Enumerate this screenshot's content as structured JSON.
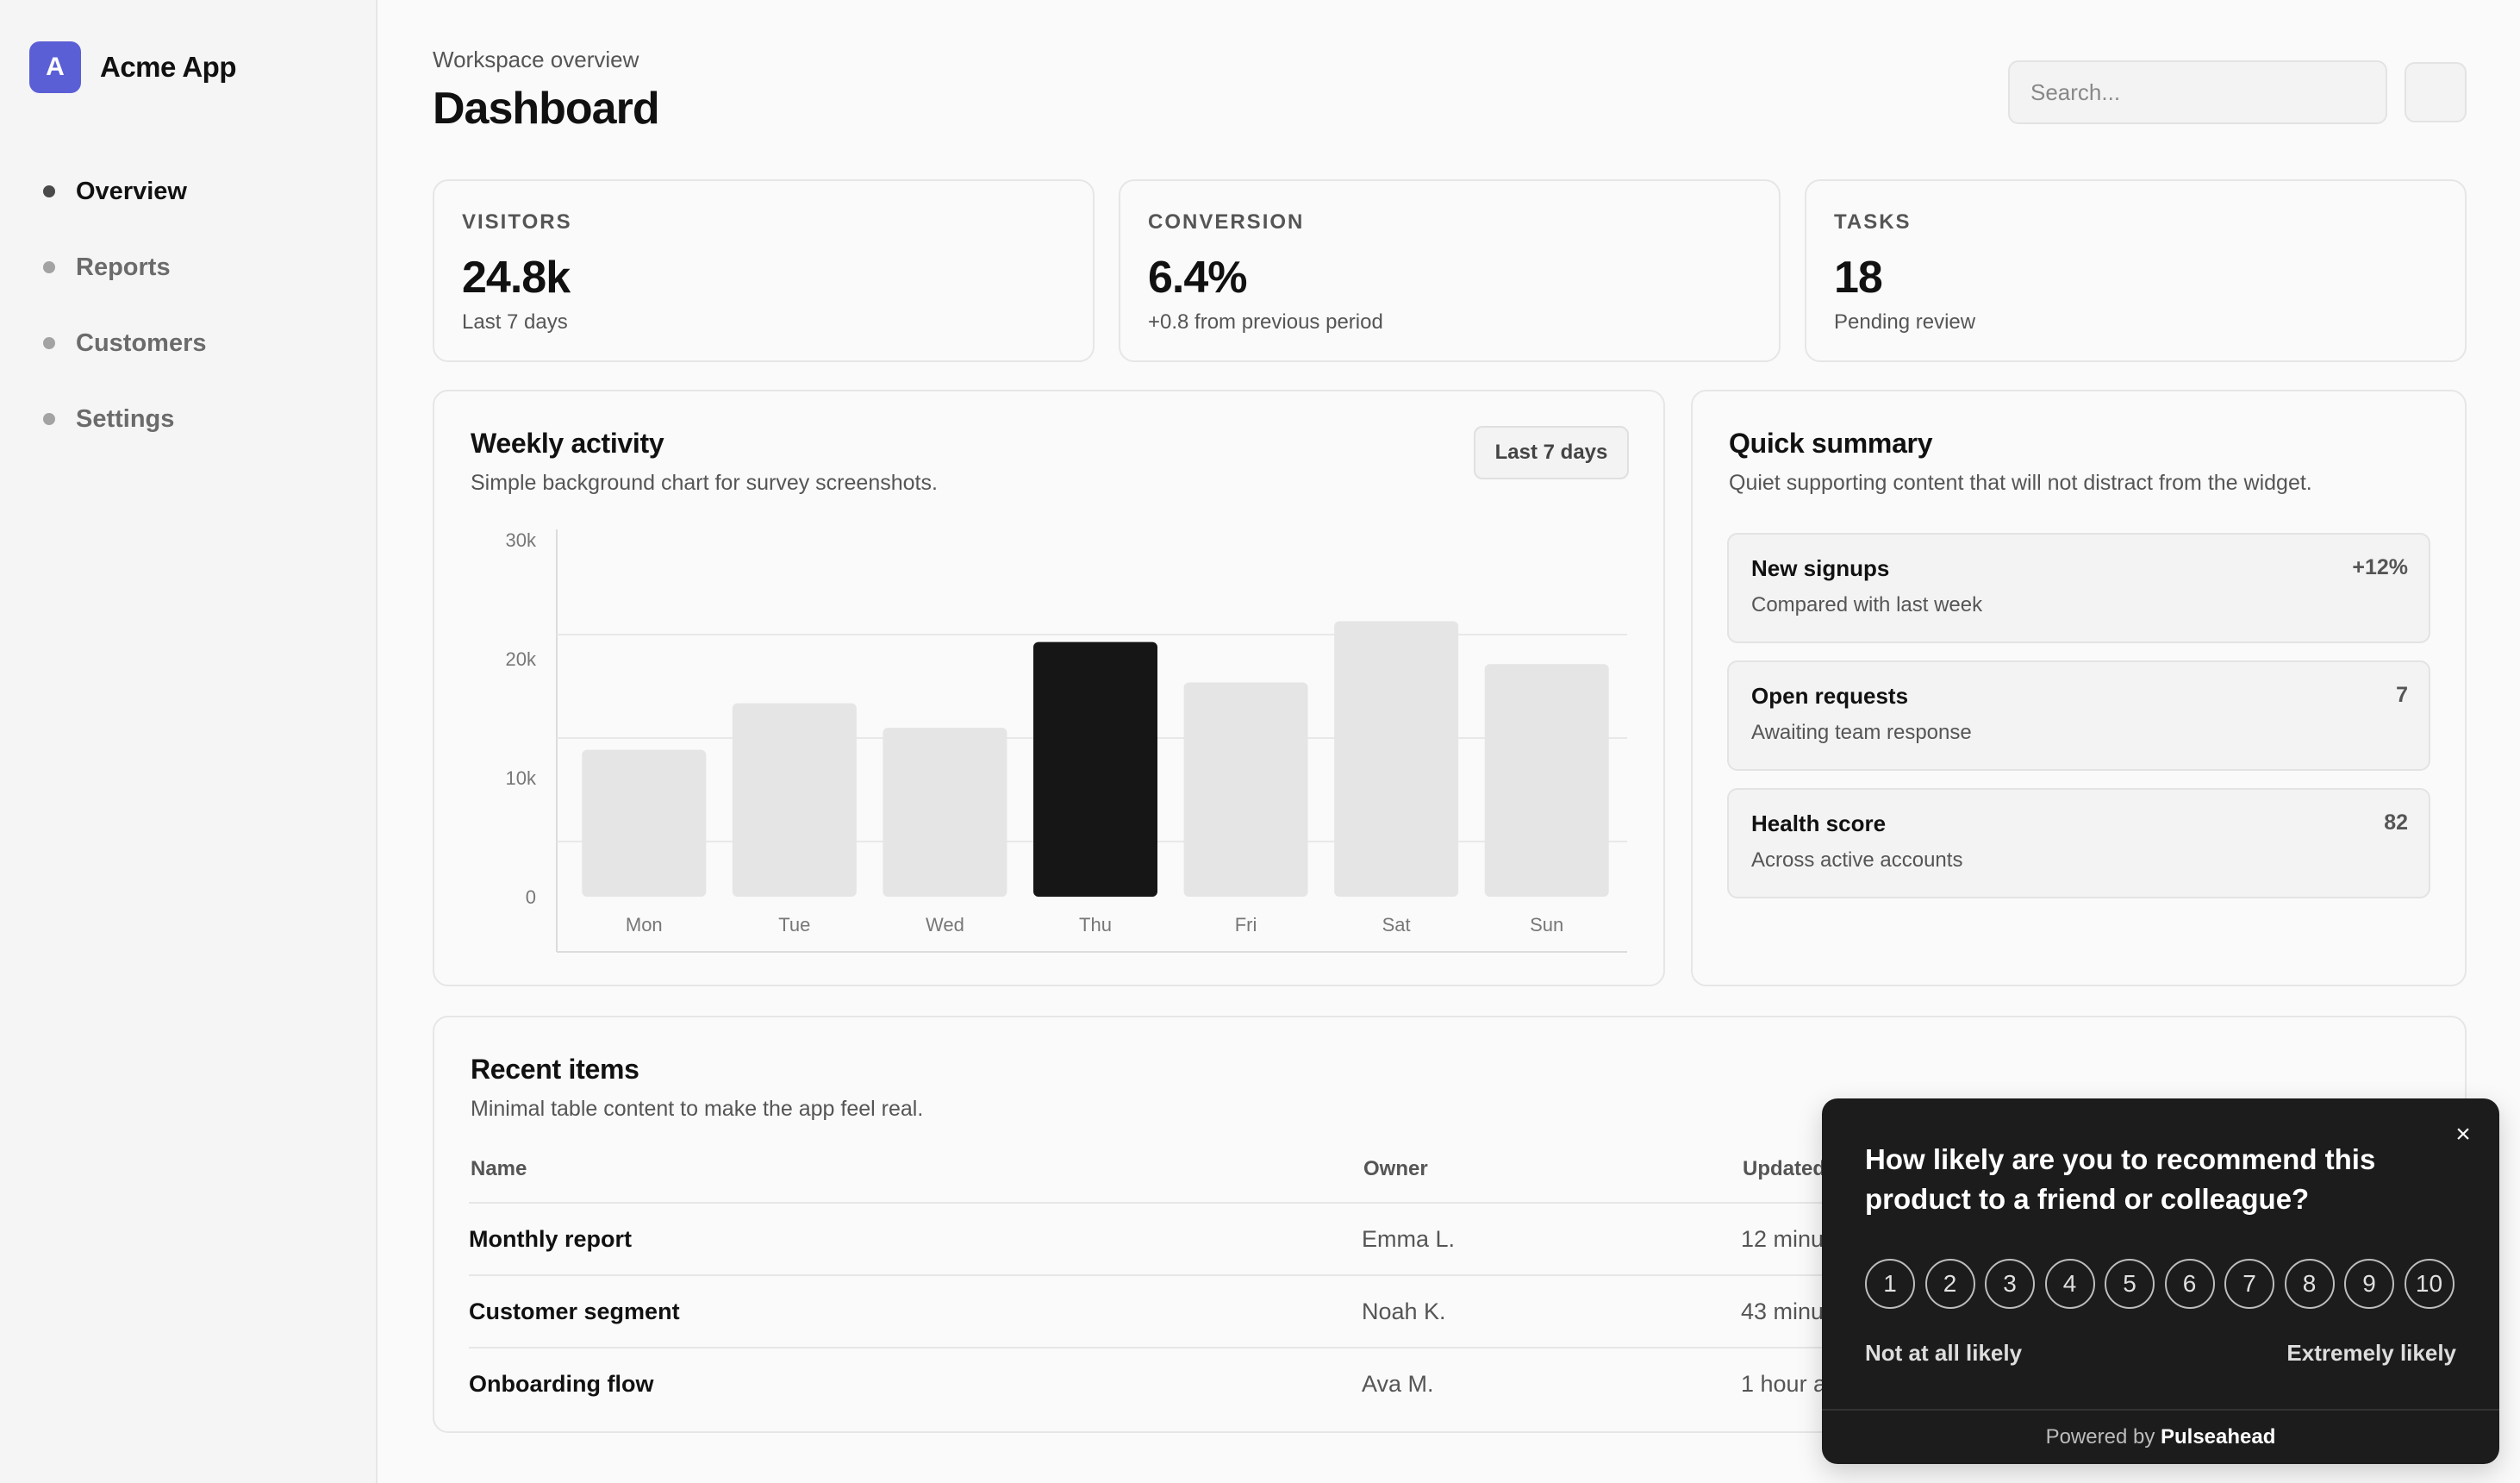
{
  "brand": {
    "logo_letter": "A",
    "name": "Acme App",
    "accent": "#5b5fd6"
  },
  "sidebar": {
    "items": [
      {
        "label": "Overview",
        "active": true
      },
      {
        "label": "Reports"
      },
      {
        "label": "Customers"
      },
      {
        "label": "Settings"
      }
    ]
  },
  "header": {
    "eyebrow": "Workspace overview",
    "title": "Dashboard",
    "search_placeholder": "Search..."
  },
  "stats": [
    {
      "label": "VISITORS",
      "value": "24.8k",
      "sub": "Last 7 days"
    },
    {
      "label": "CONVERSION",
      "value": "6.4%",
      "sub": "+0.8 from previous period"
    },
    {
      "label": "TASKS",
      "value": "18",
      "sub": "Pending review"
    }
  ],
  "activity": {
    "title": "Weekly activity",
    "subtitle": "Simple background chart for survey screenshots.",
    "range_button": "Last 7 days"
  },
  "chart_data": {
    "type": "bar",
    "categories": [
      "Mon",
      "Tue",
      "Wed",
      "Thu",
      "Fri",
      "Sat",
      "Sun"
    ],
    "values": [
      12000,
      15800,
      13800,
      20800,
      17500,
      22500,
      19000
    ],
    "highlight_index": 3,
    "y_ticks": [
      "30k",
      "20k",
      "10k",
      "0"
    ],
    "ylim": [
      0,
      30000
    ],
    "grid": true,
    "colors": {
      "bar": "#e5e5e5",
      "highlight": "#161616"
    },
    "title": "",
    "xlabel": "",
    "ylabel": ""
  },
  "summary": {
    "title": "Quick summary",
    "subtitle": "Quiet supporting content that will not distract from the widget.",
    "items": [
      {
        "title": "New signups",
        "desc": "Compared with last week",
        "value": "+12%"
      },
      {
        "title": "Open requests",
        "desc": "Awaiting team response",
        "value": "7"
      },
      {
        "title": "Health score",
        "desc": "Across active accounts",
        "value": "82"
      }
    ]
  },
  "recent": {
    "title": "Recent items",
    "subtitle": "Minimal table content to make the app feel real.",
    "columns": [
      "Name",
      "Owner",
      "Updated"
    ],
    "rows": [
      {
        "name": "Monthly report",
        "owner": "Emma L.",
        "updated": "12 minutes ago"
      },
      {
        "name": "Customer segment",
        "owner": "Noah K.",
        "updated": "43 minutes ago"
      },
      {
        "name": "Onboarding flow",
        "owner": "Ava M.",
        "updated": "1 hour ago"
      }
    ]
  },
  "nps": {
    "close_icon": "×",
    "question": "How likely are you to recommend this product to a friend or colleague?",
    "options": [
      "1",
      "2",
      "3",
      "4",
      "5",
      "6",
      "7",
      "8",
      "9",
      "10"
    ],
    "low_label": "Not at all likely",
    "high_label": "Extremely likely",
    "footer_prefix": "Powered by",
    "footer_brand": "Pulseahead"
  }
}
